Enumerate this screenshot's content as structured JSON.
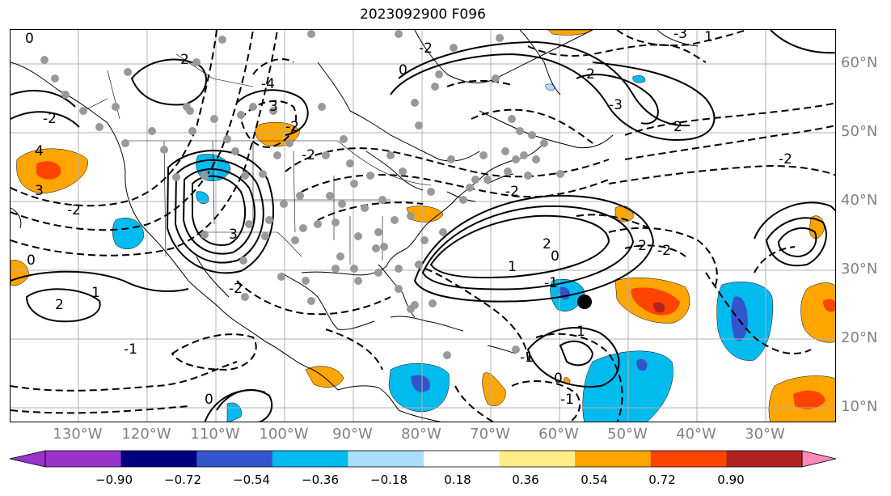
{
  "title": "2023092900 F096",
  "lat_labels": [
    "60°N",
    "50°N",
    "40°N",
    "30°N",
    "20°N",
    "10°N"
  ],
  "lon_labels": [
    "130°W",
    "120°W",
    "110°W",
    "100°W",
    "90°W",
    "80°W",
    "70°W",
    "60°W",
    "50°W",
    "40°W",
    "30°W"
  ],
  "colorbar": {
    "ticks": [
      "−0.90",
      "−0.72",
      "−0.54",
      "−0.36",
      "−0.18",
      "0.18",
      "0.36",
      "0.54",
      "0.72",
      "0.90"
    ],
    "colors": [
      "#9933cc",
      "#000080",
      "#3355cc",
      "#00bbee",
      "#aaddff",
      "#ffffff",
      "#ffee88",
      "#ffa500",
      "#ff4400",
      "#b22222",
      "#ff88bb"
    ]
  },
  "contour_labels": [
    "0",
    "2",
    "3",
    "4",
    "3",
    "-2",
    "0",
    "-2",
    "2",
    "1",
    "-2",
    "3",
    "-4",
    "-2",
    "-2",
    "0",
    "-2",
    "-2",
    "2",
    "0",
    "1",
    "-1",
    "-2",
    "-2",
    "2",
    "-3",
    "2",
    "-2",
    "-1",
    "-1",
    "0",
    "-1",
    "1",
    "0",
    "-3",
    "1"
  ]
}
